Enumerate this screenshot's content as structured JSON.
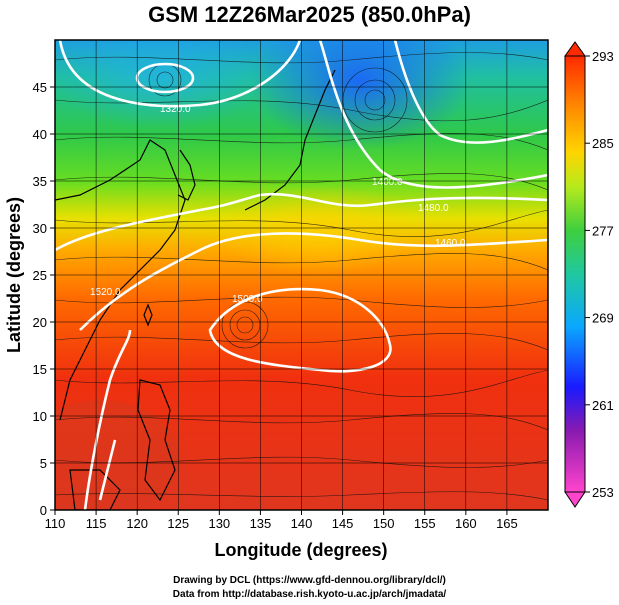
{
  "title": "GSM 12Z26Mar2025 (850.0hPa)",
  "credits": {
    "line1": "Drawing by DCL (https://www.gfd-dennou.org/library/dcl/)",
    "line2": "Data from http://database.rish.kyoto-u.ac.jp/arch/jmadata/"
  },
  "axes": {
    "xlabel": "Longitude (degrees)",
    "ylabel": "Latitude  (degrees)",
    "x_ticks": [
      "110",
      "115",
      "120",
      "125",
      "130",
      "135",
      "140",
      "145",
      "150",
      "155",
      "160",
      "165"
    ],
    "y_ticks": [
      "0",
      "5",
      "10",
      "15",
      "20",
      "25",
      "30",
      "35",
      "40",
      "45"
    ],
    "xlim": [
      110,
      170
    ],
    "ylim": [
      0,
      50
    ]
  },
  "colorbar": {
    "ticks": [
      "293",
      "285",
      "277",
      "269",
      "261",
      "253"
    ],
    "range": [
      253,
      293
    ],
    "colors": [
      "#ff55cc",
      "#1a1aff",
      "#00b4ff",
      "#3ecf3e",
      "#b6ea1c",
      "#ffd400",
      "#ff8c00",
      "#ff2a00",
      "#e01b1b"
    ]
  },
  "contours": {
    "labels": [
      "1320.0",
      "1400.0",
      "1480.0",
      "1500.0",
      "1460.0",
      "1520.0"
    ]
  },
  "chart_data": {
    "type": "heatmap",
    "title": "GSM 12Z26Mar2025 (850.0hPa)",
    "xlabel": "Longitude (degrees)",
    "ylabel": "Latitude  (degrees)",
    "xlim": [
      110,
      170
    ],
    "ylim": [
      0,
      50
    ],
    "color_range": [
      253,
      293
    ]
  }
}
